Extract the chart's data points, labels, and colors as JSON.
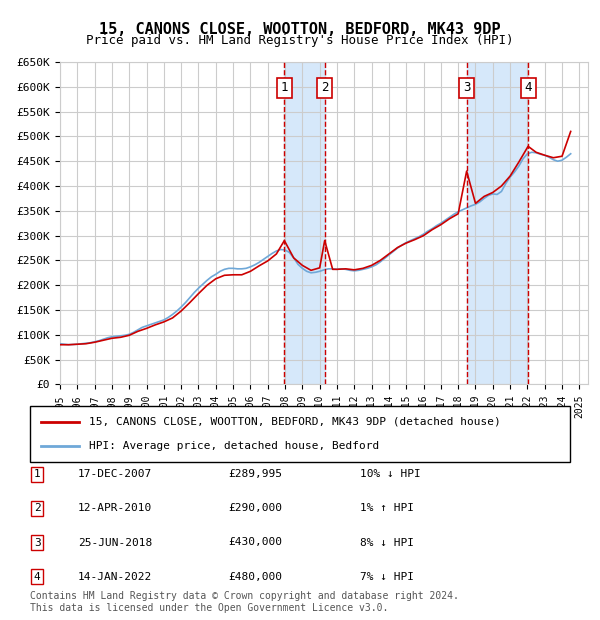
{
  "title": "15, CANONS CLOSE, WOOTTON, BEDFORD, MK43 9DP",
  "subtitle": "Price paid vs. HM Land Registry's House Price Index (HPI)",
  "ylim": [
    0,
    650000
  ],
  "yticks": [
    0,
    50000,
    100000,
    150000,
    200000,
    250000,
    300000,
    350000,
    400000,
    450000,
    500000,
    550000,
    600000,
    650000
  ],
  "ytick_labels": [
    "£0",
    "£50K",
    "£100K",
    "£150K",
    "£200K",
    "£250K",
    "£300K",
    "£350K",
    "£400K",
    "£450K",
    "£500K",
    "£550K",
    "£600K",
    "£650K"
  ],
  "xlim_start": 1995.0,
  "xlim_end": 2025.5,
  "hpi_color": "#6fa8d8",
  "price_color": "#cc0000",
  "sale_line_color": "#cc0000",
  "highlight_color": "#d6e8fa",
  "sale_events": [
    {
      "num": 1,
      "year": 2007.96,
      "price": 289995,
      "date": "17-DEC-2007",
      "pct": "10%",
      "dir": "↓"
    },
    {
      "num": 2,
      "year": 2010.29,
      "price": 290000,
      "date": "12-APR-2010",
      "pct": "1%",
      "dir": "↑"
    },
    {
      "num": 3,
      "year": 2018.49,
      "price": 430000,
      "date": "25-JUN-2018",
      "pct": "8%",
      "dir": "↓"
    },
    {
      "num": 4,
      "year": 2022.04,
      "price": 480000,
      "date": "14-JAN-2022",
      "pct": "7%",
      "dir": "↓"
    }
  ],
  "legend_label_red": "15, CANONS CLOSE, WOOTTON, BEDFORD, MK43 9DP (detached house)",
  "legend_label_blue": "HPI: Average price, detached house, Bedford",
  "footer": "Contains HM Land Registry data © Crown copyright and database right 2024.\nThis data is licensed under the Open Government Licence v3.0.",
  "hpi_data": {
    "years": [
      1995.0,
      1995.25,
      1995.5,
      1995.75,
      1996.0,
      1996.25,
      1996.5,
      1996.75,
      1997.0,
      1997.25,
      1997.5,
      1997.75,
      1998.0,
      1998.25,
      1998.5,
      1998.75,
      1999.0,
      1999.25,
      1999.5,
      1999.75,
      2000.0,
      2000.25,
      2000.5,
      2000.75,
      2001.0,
      2001.25,
      2001.5,
      2001.75,
      2002.0,
      2002.25,
      2002.5,
      2002.75,
      2003.0,
      2003.25,
      2003.5,
      2003.75,
      2004.0,
      2004.25,
      2004.5,
      2004.75,
      2005.0,
      2005.25,
      2005.5,
      2005.75,
      2006.0,
      2006.25,
      2006.5,
      2006.75,
      2007.0,
      2007.25,
      2007.5,
      2007.75,
      2008.0,
      2008.25,
      2008.5,
      2008.75,
      2009.0,
      2009.25,
      2009.5,
      2009.75,
      2010.0,
      2010.25,
      2010.5,
      2010.75,
      2011.0,
      2011.25,
      2011.5,
      2011.75,
      2012.0,
      2012.25,
      2012.5,
      2012.75,
      2013.0,
      2013.25,
      2013.5,
      2013.75,
      2014.0,
      2014.25,
      2014.5,
      2014.75,
      2015.0,
      2015.25,
      2015.5,
      2015.75,
      2016.0,
      2016.25,
      2016.5,
      2016.75,
      2017.0,
      2017.25,
      2017.5,
      2017.75,
      2018.0,
      2018.25,
      2018.5,
      2018.75,
      2019.0,
      2019.25,
      2019.5,
      2019.75,
      2020.0,
      2020.25,
      2020.5,
      2020.75,
      2021.0,
      2021.25,
      2021.5,
      2021.75,
      2022.0,
      2022.25,
      2022.5,
      2022.75,
      2023.0,
      2023.25,
      2023.5,
      2023.75,
      2024.0,
      2024.25,
      2024.5
    ],
    "values": [
      82000,
      81000,
      80000,
      80500,
      81000,
      82000,
      83000,
      84000,
      86000,
      88000,
      91000,
      94000,
      96000,
      97000,
      98000,
      99000,
      101000,
      105000,
      110000,
      115000,
      118000,
      121000,
      124000,
      127000,
      130000,
      135000,
      141000,
      148000,
      156000,
      165000,
      175000,
      185000,
      194000,
      202000,
      210000,
      217000,
      222000,
      228000,
      232000,
      234000,
      234000,
      233000,
      233000,
      234000,
      237000,
      241000,
      246000,
      252000,
      258000,
      264000,
      269000,
      272000,
      271000,
      266000,
      255000,
      242000,
      234000,
      228000,
      225000,
      226000,
      228000,
      231000,
      233000,
      233000,
      232000,
      233000,
      232000,
      230000,
      229000,
      230000,
      232000,
      234000,
      237000,
      241000,
      247000,
      254000,
      261000,
      268000,
      275000,
      281000,
      286000,
      290000,
      294000,
      298000,
      303000,
      309000,
      314000,
      320000,
      325000,
      331000,
      337000,
      343000,
      348000,
      352000,
      356000,
      360000,
      363000,
      368000,
      375000,
      381000,
      384000,
      383000,
      389000,
      405000,
      418000,
      428000,
      440000,
      455000,
      465000,
      468000,
      467000,
      464000,
      462000,
      458000,
      453000,
      450000,
      452000,
      458000,
      465000
    ]
  },
  "price_data": {
    "years": [
      1995.0,
      1995.5,
      1996.0,
      1996.5,
      1997.0,
      1997.5,
      1998.0,
      1998.5,
      1999.0,
      1999.5,
      2000.0,
      2000.5,
      2001.0,
      2001.5,
      2002.0,
      2002.5,
      2003.0,
      2003.5,
      2004.0,
      2004.5,
      2005.0,
      2005.5,
      2006.0,
      2006.5,
      2007.0,
      2007.5,
      2007.96,
      2008.5,
      2009.0,
      2009.5,
      2010.0,
      2010.29,
      2010.75,
      2011.0,
      2011.5,
      2012.0,
      2012.5,
      2013.0,
      2013.5,
      2014.0,
      2014.5,
      2015.0,
      2015.5,
      2016.0,
      2016.5,
      2017.0,
      2017.5,
      2018.0,
      2018.49,
      2019.0,
      2019.5,
      2020.0,
      2020.5,
      2021.0,
      2021.5,
      2022.04,
      2022.5,
      2023.0,
      2023.5,
      2024.0,
      2024.5
    ],
    "values": [
      80000,
      80000,
      81000,
      82000,
      85000,
      89000,
      93000,
      95000,
      99000,
      107000,
      113000,
      120000,
      126000,
      134000,
      148000,
      165000,
      183000,
      200000,
      213000,
      220000,
      221000,
      221000,
      228000,
      239000,
      249000,
      263000,
      289995,
      255000,
      240000,
      230000,
      235000,
      290000,
      232000,
      232000,
      233000,
      231000,
      234000,
      240000,
      250000,
      263000,
      276000,
      285000,
      292000,
      300000,
      312000,
      322000,
      334000,
      344000,
      430000,
      365000,
      379000,
      387000,
      400000,
      420000,
      448000,
      480000,
      468000,
      462000,
      457000,
      460000,
      510000
    ]
  }
}
